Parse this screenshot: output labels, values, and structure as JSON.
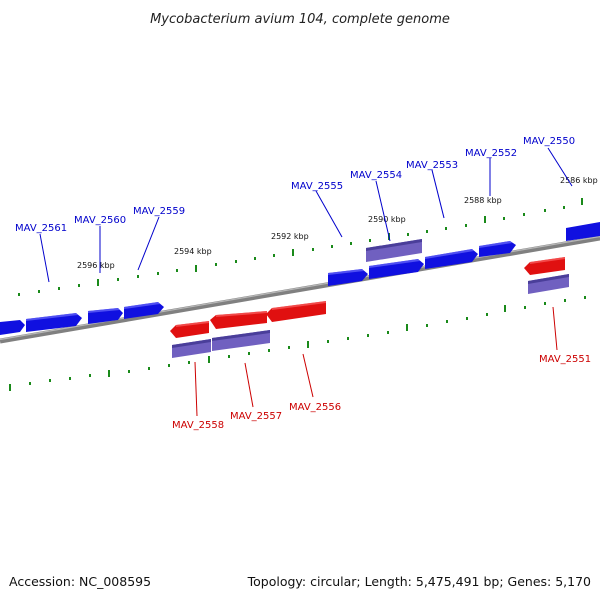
{
  "title": "Mycobacterium avium 104, complete genome",
  "footer": {
    "accession": "Accession: NC_008595",
    "info": "Topology: circular; Length: 5,475,491 bp; Genes: 5,170"
  },
  "colors": {
    "forward_gene": "#1010e0",
    "reverse_gene": "#e01010",
    "cds": "#7060c0",
    "backbone": "#808080",
    "tick": "#1a8a1a",
    "forward_label": "#0000cc",
    "reverse_label": "#cc0000"
  },
  "scale_ticks": [
    {
      "label": "2586 kbp"
    },
    {
      "label": "2588 kbp"
    },
    {
      "label": "2590 kbp"
    },
    {
      "label": "2592 kbp"
    },
    {
      "label": "2594 kbp"
    },
    {
      "label": "2596 kbp"
    }
  ],
  "gene_labels": {
    "MAV_2550": "MAV_2550",
    "MAV_2551": "MAV_2551",
    "MAV_2552": "MAV_2552",
    "MAV_2553": "MAV_2553",
    "MAV_2554": "MAV_2554",
    "MAV_2555": "MAV_2555",
    "MAV_2556": "MAV_2556",
    "MAV_2557": "MAV_2557",
    "MAV_2558": "MAV_2558",
    "MAV_2559": "MAV_2559",
    "MAV_2560": "MAV_2560",
    "MAV_2561": "MAV_2561"
  }
}
